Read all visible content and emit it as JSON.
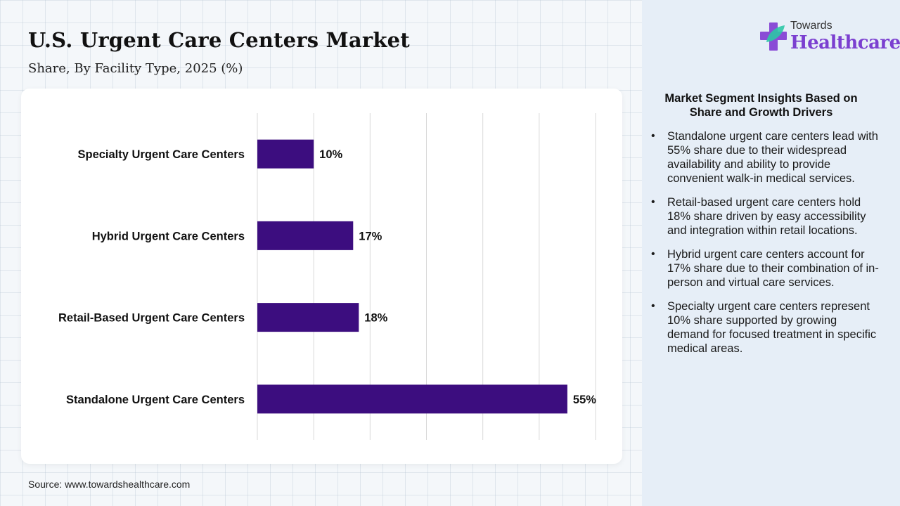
{
  "header": {
    "title": "U.S. Urgent Care Centers Market",
    "subtitle": "Share, By Facility Type, 2025 (%)"
  },
  "logo": {
    "top": "Towards",
    "main": "Healthcare"
  },
  "colors": {
    "bar": "#3c0d7f",
    "accent": "#7b3fd0",
    "logo_cross": "#8a4bd6",
    "logo_leaf": "#2cc6a6"
  },
  "chart_data": {
    "type": "bar",
    "orientation": "horizontal",
    "categories": [
      "Specialty Urgent Care Centers",
      "Hybrid Urgent Care Centers",
      "Retail-Based Urgent Care Centers",
      "Standalone Urgent Care Centers"
    ],
    "values": [
      10,
      17,
      18,
      55
    ],
    "value_labels": [
      "10%",
      "17%",
      "18%",
      "55%"
    ],
    "xlim": [
      0,
      60
    ],
    "grid": true,
    "legend": "none"
  },
  "insights": {
    "title": "Market Segment Insights Based on Share and Growth Drivers",
    "items": [
      "Standalone urgent care centers lead with 55% share due to their widespread availability and ability to provide convenient walk-in medical services.",
      "Retail-based urgent care centers hold 18% share driven by easy accessibility and integration within retail locations.",
      "Hybrid urgent care centers account for 17% share due to their combination of in-person and virtual care services.",
      "Specialty urgent care centers represent 10% share supported by growing demand for focused treatment in specific medical areas."
    ]
  },
  "footer": {
    "source": "Source: www.towardshealthcare.com"
  }
}
